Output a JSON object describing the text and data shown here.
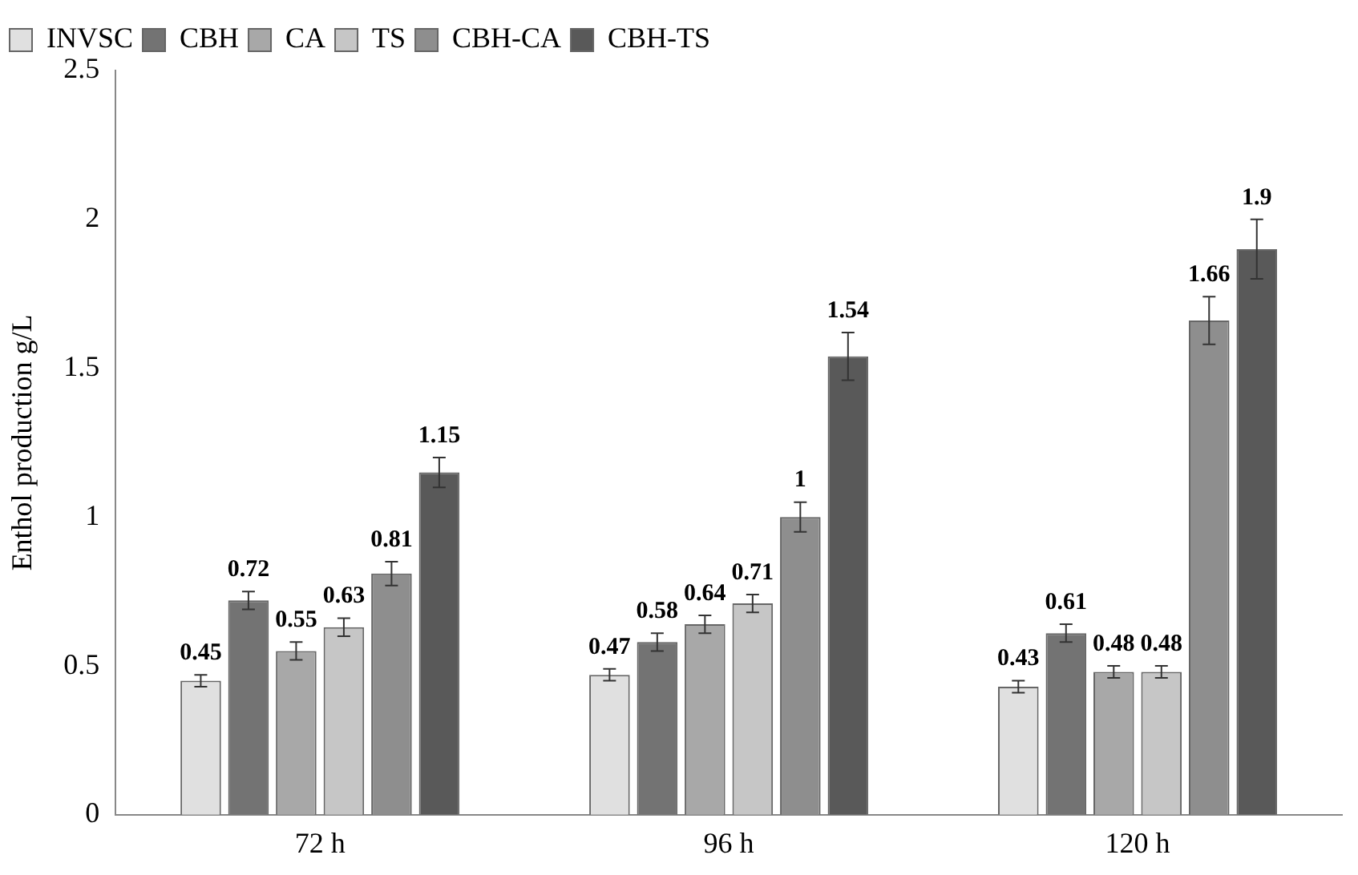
{
  "chart_data": {
    "type": "bar",
    "ylabel": "Enthol production g/L",
    "categories": [
      "72 h",
      "96 h",
      "120 h"
    ],
    "series": [
      {
        "name": "INVSC",
        "color": "#e0e0e0",
        "values": [
          0.45,
          0.47,
          0.43
        ],
        "errors": [
          0.02,
          0.02,
          0.02
        ]
      },
      {
        "name": "CBH",
        "color": "#737373",
        "values": [
          0.72,
          0.58,
          0.61
        ],
        "errors": [
          0.03,
          0.03,
          0.03
        ]
      },
      {
        "name": "CA",
        "color": "#a8a8a8",
        "values": [
          0.55,
          0.64,
          0.48
        ],
        "errors": [
          0.03,
          0.03,
          0.02
        ]
      },
      {
        "name": "TS",
        "color": "#c6c6c6",
        "values": [
          0.63,
          0.71,
          0.48
        ],
        "errors": [
          0.03,
          0.03,
          0.02
        ]
      },
      {
        "name": "CBH-CA",
        "color": "#8e8e8e",
        "values": [
          0.81,
          1,
          1.66
        ],
        "errors": [
          0.04,
          0.05,
          0.08
        ]
      },
      {
        "name": "CBH-TS",
        "color": "#595959",
        "values": [
          1.15,
          1.54,
          1.9
        ],
        "errors": [
          0.05,
          0.08,
          0.1
        ]
      }
    ],
    "ylim": [
      0,
      2.5
    ],
    "yticks": [
      0,
      0.5,
      1,
      1.5,
      2,
      2.5
    ],
    "grid": false,
    "legend": "top left",
    "data_labels": true
  }
}
